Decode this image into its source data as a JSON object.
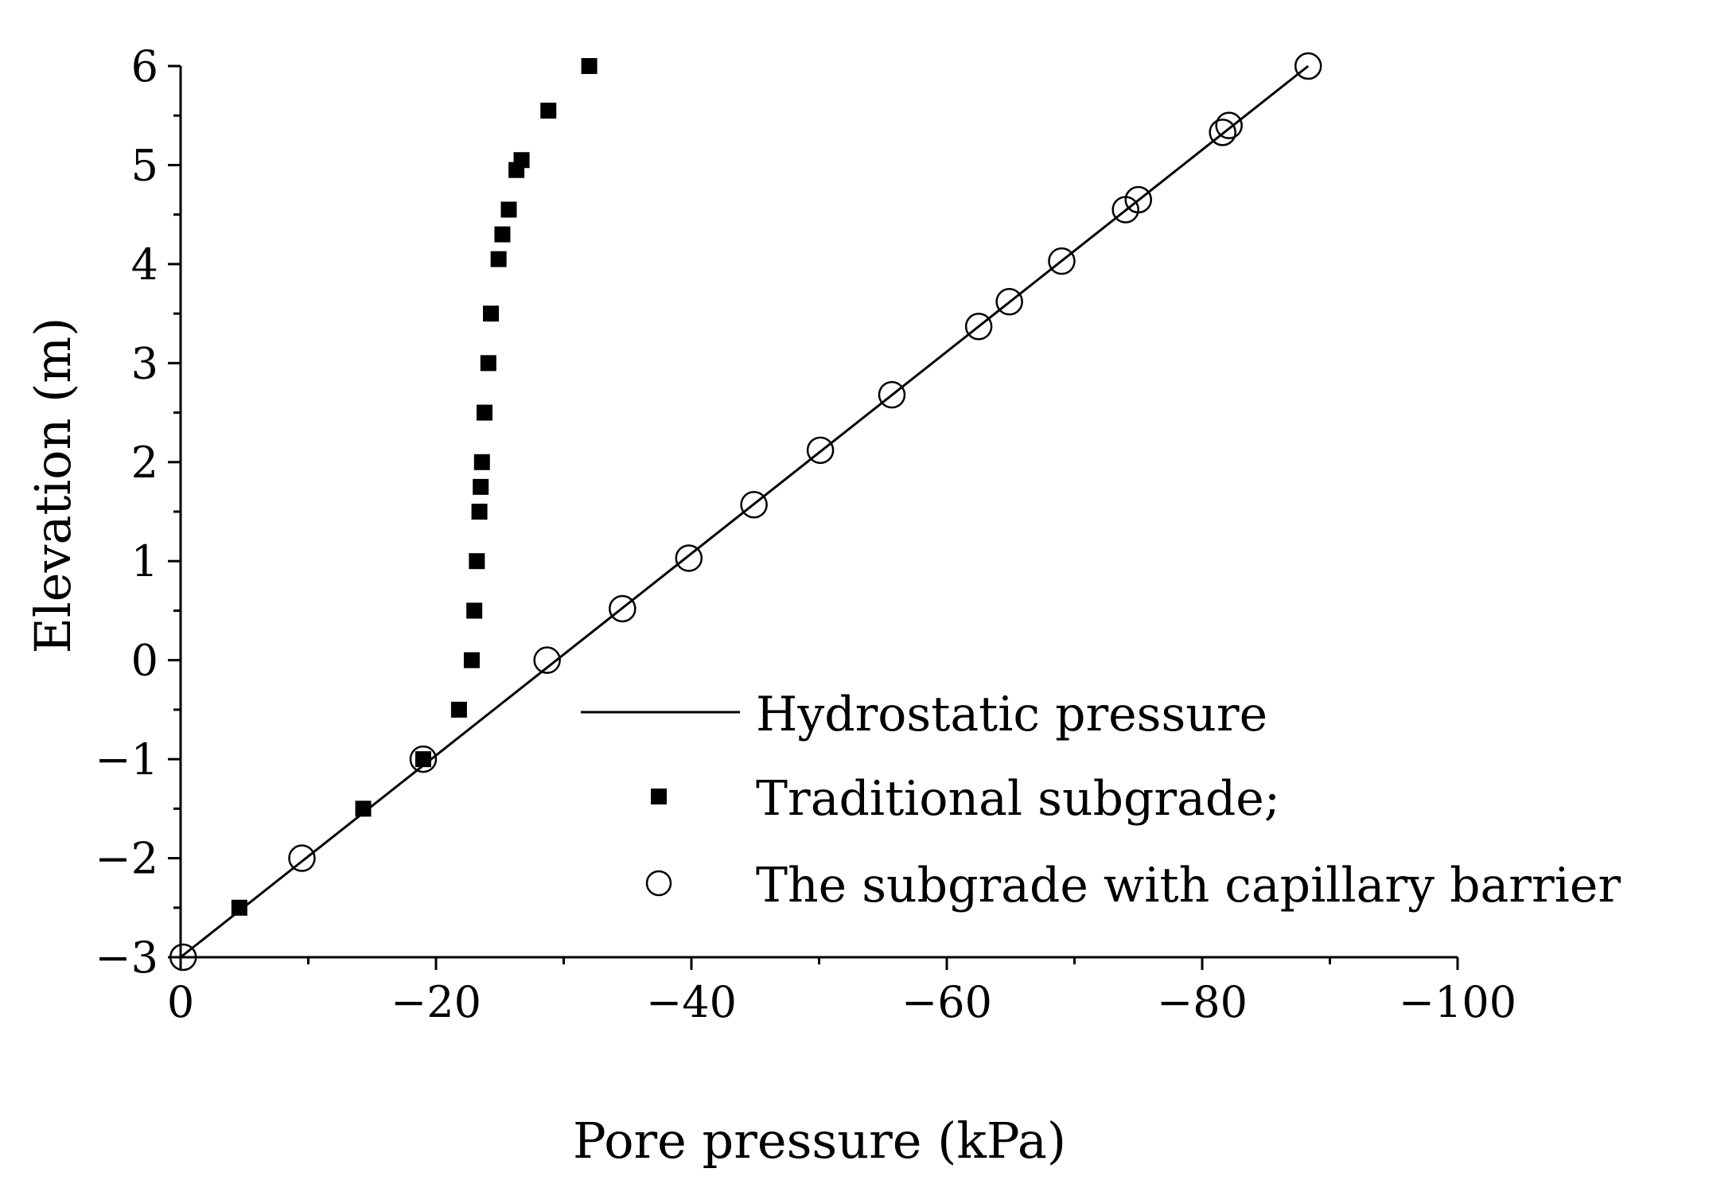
{
  "chart_data": {
    "type": "scatter",
    "title": "",
    "xlabel": "Pore pressure (kPa)",
    "ylabel": "Elevation (m)",
    "xlim": [
      0,
      -100
    ],
    "ylim": [
      -3,
      6
    ],
    "x_ticks": [
      0,
      -20,
      -40,
      -60,
      -80,
      -100
    ],
    "x_tick_labels": [
      "0",
      "-20",
      "-40",
      "-60",
      "-80",
      "-100"
    ],
    "y_ticks": [
      -3,
      -2,
      -1,
      0,
      1,
      2,
      3,
      4,
      5,
      6
    ],
    "y_tick_labels": [
      "-3",
      "-2",
      "-1",
      "0",
      "1",
      "2",
      "3",
      "4",
      "5",
      "6"
    ],
    "grid": false,
    "legend_position": "lower-right",
    "series": [
      {
        "name": "Hydrostatic pressure",
        "type": "line",
        "x": [
          0,
          -88.3
        ],
        "y": [
          -3,
          6
        ]
      },
      {
        "name": "Traditional subgrade;",
        "type": "scatter",
        "marker": "filled-square",
        "x": [
          -32,
          -28.8,
          -26.7,
          -26.3,
          -25.7,
          -25.2,
          -24.9,
          -24.3,
          -24.1,
          -23.8,
          -23.6,
          -23.5,
          -23.4,
          -23.2,
          -23.0,
          -22.8,
          -21.8,
          -19.0,
          -14.3,
          -4.6
        ],
        "y": [
          6.0,
          5.55,
          5.05,
          4.95,
          4.55,
          4.3,
          4.05,
          3.5,
          3.0,
          2.5,
          2.0,
          1.75,
          1.5,
          1.0,
          0.5,
          0.0,
          -0.5,
          -1.0,
          -1.5,
          -2.5
        ]
      },
      {
        "name": "The subgrade with capillary barrier",
        "type": "scatter",
        "marker": "open-circle",
        "x": [
          -88.3,
          -82.1,
          -81.6,
          -75.0,
          -74.0,
          -69.0,
          -64.9,
          -62.5,
          -55.7,
          -50.1,
          -44.9,
          -39.8,
          -34.6,
          -28.7,
          -19.0,
          -9.5,
          -0.2
        ],
        "y": [
          6.0,
          5.4,
          5.33,
          4.65,
          4.55,
          4.03,
          3.62,
          3.37,
          2.68,
          2.12,
          1.57,
          1.03,
          0.52,
          0.0,
          -1.0,
          -2.0,
          -3.0
        ]
      }
    ]
  }
}
